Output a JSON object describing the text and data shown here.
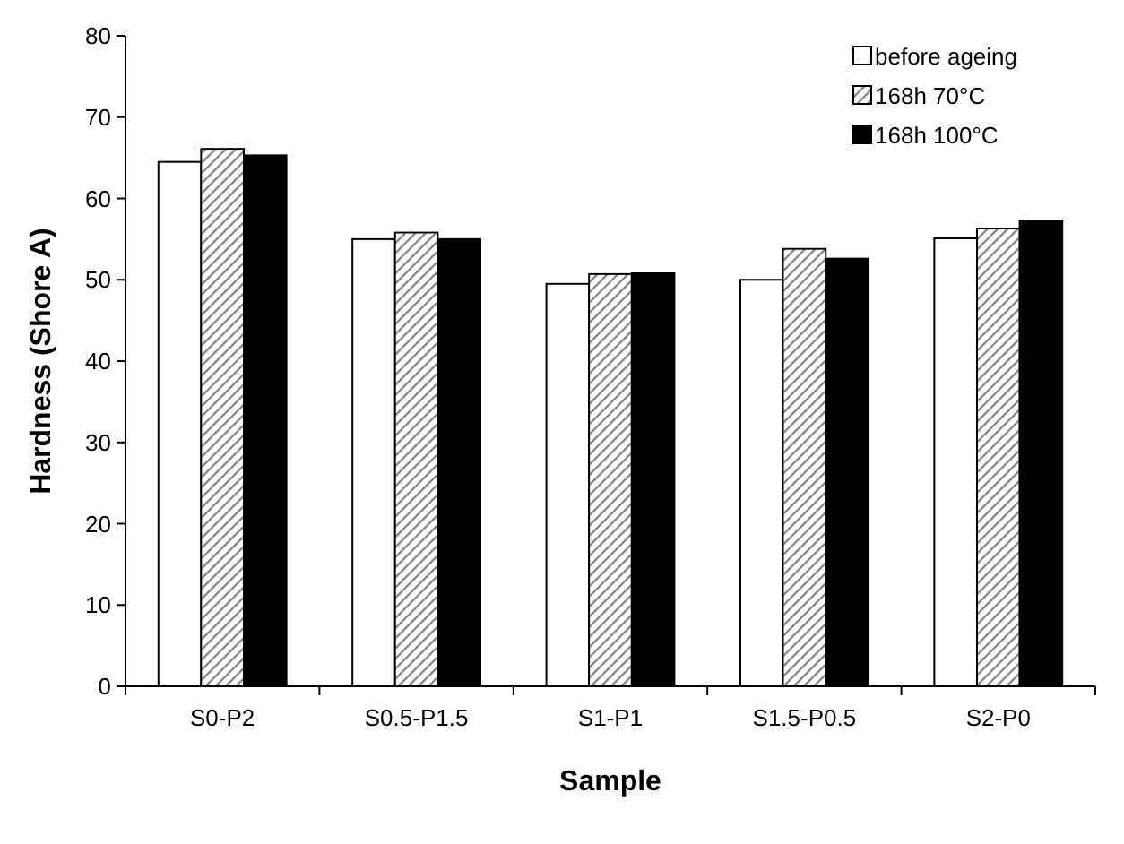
{
  "chart_data": {
    "type": "bar",
    "xlabel": "Sample",
    "ylabel": "Hardness (Shore A)",
    "categories": [
      "S0-P2",
      "S0.5-P1.5",
      "S1-P1",
      "S1.5-P0.5",
      "S2-P0"
    ],
    "series": [
      {
        "name": "before ageing",
        "color": "#ffffff",
        "values": [
          64.5,
          55.0,
          49.5,
          50.0,
          55.1
        ]
      },
      {
        "name": "168h 70°C",
        "color": "#7f7f7f",
        "values": [
          66.1,
          55.8,
          50.7,
          53.8,
          56.3
        ]
      },
      {
        "name": "168h 100°C",
        "color": "#000000",
        "values": [
          65.3,
          55.0,
          50.8,
          52.6,
          57.2
        ]
      }
    ],
    "ylim": [
      0,
      80
    ],
    "yticks": [
      0,
      10,
      20,
      30,
      40,
      50,
      60,
      70,
      80
    ],
    "grid": false,
    "legend": "top right"
  }
}
